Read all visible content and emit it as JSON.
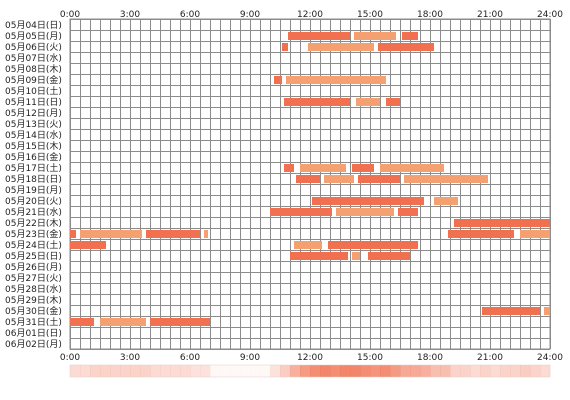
{
  "chart_data": {
    "type": "heatmap",
    "x_ticks": [
      "0:00",
      "3:00",
      "6:00",
      "9:00",
      "12:00",
      "15:00",
      "18:00",
      "21:00",
      "24:00"
    ],
    "x_range_hours": [
      0,
      24
    ],
    "grid": true,
    "colors": {
      "activity": "#f07050",
      "activity_light": "#f4a070",
      "grid": "#8c8c8c",
      "summary_strip": "#f07050"
    },
    "rows": [
      {
        "label": "05月04日(日)",
        "segments": []
      },
      {
        "label": "05月05日(月)",
        "segments": [
          [
            10.9,
            14.0
          ],
          [
            14.2,
            16.3
          ],
          [
            16.6,
            17.4
          ]
        ]
      },
      {
        "label": "05月06日(火)",
        "segments": [
          [
            10.6,
            10.9
          ],
          [
            11.9,
            15.2
          ],
          [
            15.4,
            18.2
          ]
        ]
      },
      {
        "label": "05月07日(水)",
        "segments": []
      },
      {
        "label": "05月08日(木)",
        "segments": []
      },
      {
        "label": "05月09日(金)",
        "segments": [
          [
            10.2,
            10.6
          ],
          [
            10.8,
            15.8
          ]
        ]
      },
      {
        "label": "05月10日(土)",
        "segments": []
      },
      {
        "label": "05月11日(日)",
        "segments": [
          [
            10.7,
            14.0
          ],
          [
            14.3,
            15.5
          ],
          [
            15.8,
            16.5
          ]
        ]
      },
      {
        "label": "05月12日(月)",
        "segments": []
      },
      {
        "label": "05月13日(火)",
        "segments": []
      },
      {
        "label": "05月14日(水)",
        "segments": []
      },
      {
        "label": "05月15日(木)",
        "segments": []
      },
      {
        "label": "05月16日(金)",
        "segments": []
      },
      {
        "label": "05月17日(土)",
        "segments": [
          [
            10.7,
            11.2
          ],
          [
            11.5,
            13.8
          ],
          [
            14.1,
            15.2
          ],
          [
            15.5,
            18.7
          ]
        ]
      },
      {
        "label": "05月18日(日)",
        "segments": [
          [
            11.3,
            12.5
          ],
          [
            12.7,
            14.2
          ],
          [
            14.4,
            16.5
          ],
          [
            16.7,
            20.9
          ]
        ]
      },
      {
        "label": "05月19日(月)",
        "segments": []
      },
      {
        "label": "05月20日(火)",
        "segments": [
          [
            12.1,
            17.7
          ],
          [
            18.2,
            19.4
          ]
        ]
      },
      {
        "label": "05月21日(水)",
        "segments": [
          [
            10.0,
            13.1
          ],
          [
            13.3,
            16.2
          ],
          [
            16.4,
            17.4
          ]
        ]
      },
      {
        "label": "05月22日(木)",
        "segments": [
          [
            19.2,
            24.0
          ]
        ]
      },
      {
        "label": "05月23日(金)",
        "segments": [
          [
            0.0,
            0.3
          ],
          [
            0.5,
            3.6
          ],
          [
            3.8,
            6.5
          ],
          [
            6.7,
            6.9
          ],
          [
            18.9,
            22.2
          ],
          [
            22.5,
            24.0
          ]
        ]
      },
      {
        "label": "05月24日(土)",
        "segments": [
          [
            0.0,
            1.8
          ],
          [
            11.2,
            12.6
          ],
          [
            12.9,
            17.4
          ]
        ]
      },
      {
        "label": "05月25日(日)",
        "segments": [
          [
            11.0,
            13.9
          ],
          [
            14.1,
            14.5
          ],
          [
            14.9,
            17.0
          ]
        ]
      },
      {
        "label": "05月26日(月)",
        "segments": []
      },
      {
        "label": "05月27日(火)",
        "segments": []
      },
      {
        "label": "05月28日(水)",
        "segments": []
      },
      {
        "label": "05月29日(木)",
        "segments": []
      },
      {
        "label": "05月30日(金)",
        "segments": [
          [
            20.6,
            23.5
          ],
          [
            23.7,
            24.0
          ]
        ]
      },
      {
        "label": "05月31日(土)",
        "segments": [
          [
            0.0,
            1.2
          ],
          [
            1.5,
            3.8
          ],
          [
            4.0,
            7.0
          ]
        ]
      },
      {
        "label": "06月01日(日)",
        "segments": []
      },
      {
        "label": "06月02日(月)",
        "segments": []
      }
    ],
    "summary_strip": {
      "label": "",
      "intensity_by_half_hour": [
        0.25,
        0.25,
        0.3,
        0.3,
        0.3,
        0.3,
        0.3,
        0.3,
        0.25,
        0.25,
        0.25,
        0.25,
        0.2,
        0.2,
        0.05,
        0.05,
        0.05,
        0.05,
        0.05,
        0.05,
        0.2,
        0.35,
        0.55,
        0.7,
        0.8,
        0.85,
        0.8,
        0.85,
        0.85,
        0.8,
        0.75,
        0.8,
        0.7,
        0.6,
        0.6,
        0.55,
        0.45,
        0.45,
        0.3,
        0.3,
        0.25,
        0.3,
        0.25,
        0.3,
        0.3,
        0.35,
        0.3,
        0.25
      ]
    }
  }
}
